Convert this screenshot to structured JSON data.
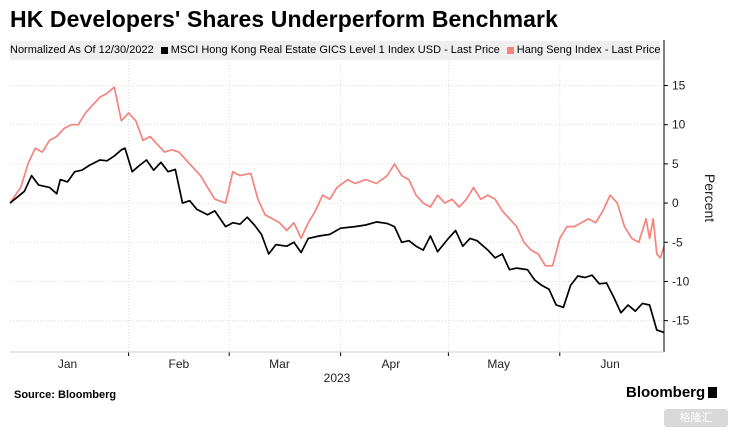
{
  "title": "HK Developers' Shares Underperform Benchmark",
  "legend": {
    "note": "Normalized As Of 12/30/2022",
    "items": [
      {
        "label": "MSCI Hong Kong Real Estate GICS Level 1 Index USD - Last Price",
        "color": "#000000"
      },
      {
        "label": "Hang Seng Index - Last Price",
        "color": "#f4847c"
      }
    ]
  },
  "source": "Source: Bloomberg",
  "brand": "Bloomberg",
  "watermark": "格隆汇",
  "chart_data": {
    "type": "line",
    "ylabel": "Percent",
    "ylim": [
      -19,
      18
    ],
    "yticks": [
      15,
      10,
      5,
      0,
      -5,
      -10,
      -15
    ],
    "xlabel": "2023",
    "x_range": [
      "2022-12-30",
      "2023-06-30"
    ],
    "month_labels": [
      {
        "label": "Jan",
        "date": "2023-01-15"
      },
      {
        "label": "Feb",
        "date": "2023-02-15"
      },
      {
        "label": "Mar",
        "date": "2023-03-15"
      },
      {
        "label": "Apr",
        "date": "2023-04-15"
      },
      {
        "label": "May",
        "date": "2023-05-15"
      },
      {
        "label": "Jun",
        "date": "2023-06-15"
      }
    ],
    "series": [
      {
        "name": "MSCI Hong Kong Real Estate GICS Level 1 Index USD - Last Price",
        "color": "#000000",
        "points": [
          [
            "2022-12-30",
            0
          ],
          [
            "2023-01-03",
            1.5
          ],
          [
            "2023-01-05",
            3.5
          ],
          [
            "2023-01-07",
            2.3
          ],
          [
            "2023-01-10",
            2.0
          ],
          [
            "2023-01-12",
            1.2
          ],
          [
            "2023-01-13",
            3.0
          ],
          [
            "2023-01-15",
            2.7
          ],
          [
            "2023-01-17",
            4.0
          ],
          [
            "2023-01-19",
            4.2
          ],
          [
            "2023-01-21",
            4.8
          ],
          [
            "2023-01-24",
            5.5
          ],
          [
            "2023-01-26",
            5.4
          ],
          [
            "2023-01-28",
            6.0
          ],
          [
            "2023-01-30",
            6.8
          ],
          [
            "2023-01-31",
            7.0
          ],
          [
            "2023-02-02",
            4.0
          ],
          [
            "2023-02-04",
            4.8
          ],
          [
            "2023-02-06",
            5.5
          ],
          [
            "2023-02-08",
            4.2
          ],
          [
            "2023-02-10",
            5.2
          ],
          [
            "2023-02-12",
            4.0
          ],
          [
            "2023-02-14",
            4.3
          ],
          [
            "2023-02-16",
            0.0
          ],
          [
            "2023-02-18",
            0.3
          ],
          [
            "2023-02-20",
            -0.8
          ],
          [
            "2023-02-23",
            -1.5
          ],
          [
            "2023-02-25",
            -1.0
          ],
          [
            "2023-02-28",
            -3.0
          ],
          [
            "2023-03-02",
            -2.5
          ],
          [
            "2023-03-04",
            -2.7
          ],
          [
            "2023-03-06",
            -1.8
          ],
          [
            "2023-03-08",
            -2.8
          ],
          [
            "2023-03-10",
            -4.0
          ],
          [
            "2023-03-12",
            -6.5
          ],
          [
            "2023-03-14",
            -5.3
          ],
          [
            "2023-03-17",
            -5.5
          ],
          [
            "2023-03-19",
            -5.0
          ],
          [
            "2023-03-21",
            -6.3
          ],
          [
            "2023-03-23",
            -4.5
          ],
          [
            "2023-03-26",
            -4.2
          ],
          [
            "2023-03-29",
            -4.0
          ],
          [
            "2023-04-01",
            -3.2
          ],
          [
            "2023-04-05",
            -3.0
          ],
          [
            "2023-04-08",
            -2.8
          ],
          [
            "2023-04-11",
            -2.4
          ],
          [
            "2023-04-14",
            -2.6
          ],
          [
            "2023-04-16",
            -3.0
          ],
          [
            "2023-04-18",
            -5.0
          ],
          [
            "2023-04-20",
            -4.8
          ],
          [
            "2023-04-22",
            -5.5
          ],
          [
            "2023-04-24",
            -6.0
          ],
          [
            "2023-04-26",
            -4.2
          ],
          [
            "2023-04-28",
            -6.2
          ],
          [
            "2023-05-01",
            -4.5
          ],
          [
            "2023-05-03",
            -3.5
          ],
          [
            "2023-05-05",
            -5.5
          ],
          [
            "2023-05-07",
            -4.5
          ],
          [
            "2023-05-09",
            -4.8
          ],
          [
            "2023-05-12",
            -6.0
          ],
          [
            "2023-05-14",
            -7.0
          ],
          [
            "2023-05-16",
            -6.5
          ],
          [
            "2023-05-18",
            -8.5
          ],
          [
            "2023-05-20",
            -8.3
          ],
          [
            "2023-05-23",
            -8.5
          ],
          [
            "2023-05-25",
            -9.8
          ],
          [
            "2023-05-27",
            -10.5
          ],
          [
            "2023-05-29",
            -11.0
          ],
          [
            "2023-05-31",
            -13.0
          ],
          [
            "2023-06-02",
            -13.3
          ],
          [
            "2023-06-04",
            -10.5
          ],
          [
            "2023-06-06",
            -9.3
          ],
          [
            "2023-06-08",
            -9.5
          ],
          [
            "2023-06-10",
            -9.2
          ],
          [
            "2023-06-12",
            -10.3
          ],
          [
            "2023-06-14",
            -10.2
          ],
          [
            "2023-06-16",
            -12.0
          ],
          [
            "2023-06-18",
            -14.0
          ],
          [
            "2023-06-20",
            -13.0
          ],
          [
            "2023-06-22",
            -13.8
          ],
          [
            "2023-06-24",
            -12.8
          ],
          [
            "2023-06-26",
            -13.0
          ],
          [
            "2023-06-28",
            -16.2
          ],
          [
            "2023-06-30",
            -16.5
          ]
        ]
      },
      {
        "name": "Hang Seng Index - Last Price",
        "color": "#f4847c",
        "points": [
          [
            "2022-12-30",
            0
          ],
          [
            "2023-01-02",
            2.0
          ],
          [
            "2023-01-04",
            5.0
          ],
          [
            "2023-01-06",
            7.0
          ],
          [
            "2023-01-08",
            6.5
          ],
          [
            "2023-01-10",
            8.0
          ],
          [
            "2023-01-12",
            8.5
          ],
          [
            "2023-01-14",
            9.5
          ],
          [
            "2023-01-16",
            10.0
          ],
          [
            "2023-01-18",
            10.0
          ],
          [
            "2023-01-20",
            11.5
          ],
          [
            "2023-01-22",
            12.5
          ],
          [
            "2023-01-24",
            13.5
          ],
          [
            "2023-01-26",
            14.0
          ],
          [
            "2023-01-28",
            14.8
          ],
          [
            "2023-01-30",
            10.5
          ],
          [
            "2023-02-01",
            11.5
          ],
          [
            "2023-02-03",
            10.5
          ],
          [
            "2023-02-05",
            8.0
          ],
          [
            "2023-02-07",
            8.5
          ],
          [
            "2023-02-09",
            7.5
          ],
          [
            "2023-02-11",
            6.5
          ],
          [
            "2023-02-13",
            6.8
          ],
          [
            "2023-02-15",
            6.5
          ],
          [
            "2023-02-17",
            5.5
          ],
          [
            "2023-02-19",
            4.5
          ],
          [
            "2023-02-21",
            3.5
          ],
          [
            "2023-02-23",
            2.0
          ],
          [
            "2023-02-25",
            0.5
          ],
          [
            "2023-02-28",
            0.0
          ],
          [
            "2023-03-02",
            4.0
          ],
          [
            "2023-03-04",
            3.5
          ],
          [
            "2023-03-07",
            3.8
          ],
          [
            "2023-03-09",
            0.5
          ],
          [
            "2023-03-11",
            -1.5
          ],
          [
            "2023-03-13",
            -2.0
          ],
          [
            "2023-03-15",
            -2.5
          ],
          [
            "2023-03-17",
            -3.5
          ],
          [
            "2023-03-19",
            -2.5
          ],
          [
            "2023-03-21",
            -4.5
          ],
          [
            "2023-03-23",
            -2.5
          ],
          [
            "2023-03-25",
            -1.0
          ],
          [
            "2023-03-27",
            1.0
          ],
          [
            "2023-03-29",
            0.5
          ],
          [
            "2023-03-31",
            2.0
          ],
          [
            "2023-04-03",
            3.0
          ],
          [
            "2023-04-05",
            2.5
          ],
          [
            "2023-04-08",
            3.0
          ],
          [
            "2023-04-11",
            2.5
          ],
          [
            "2023-04-14",
            3.5
          ],
          [
            "2023-04-16",
            5.0
          ],
          [
            "2023-04-18",
            3.5
          ],
          [
            "2023-04-20",
            3.0
          ],
          [
            "2023-04-22",
            1.0
          ],
          [
            "2023-04-24",
            0.0
          ],
          [
            "2023-04-26",
            -0.5
          ],
          [
            "2023-04-28",
            1.0
          ],
          [
            "2023-04-30",
            0.0
          ],
          [
            "2023-05-02",
            0.5
          ],
          [
            "2023-05-04",
            -0.5
          ],
          [
            "2023-05-06",
            0.5
          ],
          [
            "2023-05-08",
            2.0
          ],
          [
            "2023-05-10",
            0.5
          ],
          [
            "2023-05-12",
            1.0
          ],
          [
            "2023-05-14",
            0.5
          ],
          [
            "2023-05-16",
            -1.0
          ],
          [
            "2023-05-18",
            -2.0
          ],
          [
            "2023-05-20",
            -3.0
          ],
          [
            "2023-05-22",
            -5.0
          ],
          [
            "2023-05-24",
            -6.0
          ],
          [
            "2023-05-26",
            -6.5
          ],
          [
            "2023-05-28",
            -8.0
          ],
          [
            "2023-05-30",
            -8.0
          ],
          [
            "2023-06-01",
            -4.5
          ],
          [
            "2023-06-03",
            -3.0
          ],
          [
            "2023-06-05",
            -3.0
          ],
          [
            "2023-06-07",
            -2.5
          ],
          [
            "2023-06-09",
            -2.0
          ],
          [
            "2023-06-11",
            -2.5
          ],
          [
            "2023-06-13",
            -1.0
          ],
          [
            "2023-06-15",
            1.0
          ],
          [
            "2023-06-17",
            0.0
          ],
          [
            "2023-06-19",
            -3.0
          ],
          [
            "2023-06-21",
            -4.5
          ],
          [
            "2023-06-23",
            -5.0
          ],
          [
            "2023-06-25",
            -2.0
          ],
          [
            "2023-06-26",
            -4.5
          ],
          [
            "2023-06-27",
            -2.0
          ],
          [
            "2023-06-28",
            -6.5
          ],
          [
            "2023-06-29",
            -7.0
          ],
          [
            "2023-06-30",
            -5.5
          ]
        ]
      }
    ]
  }
}
